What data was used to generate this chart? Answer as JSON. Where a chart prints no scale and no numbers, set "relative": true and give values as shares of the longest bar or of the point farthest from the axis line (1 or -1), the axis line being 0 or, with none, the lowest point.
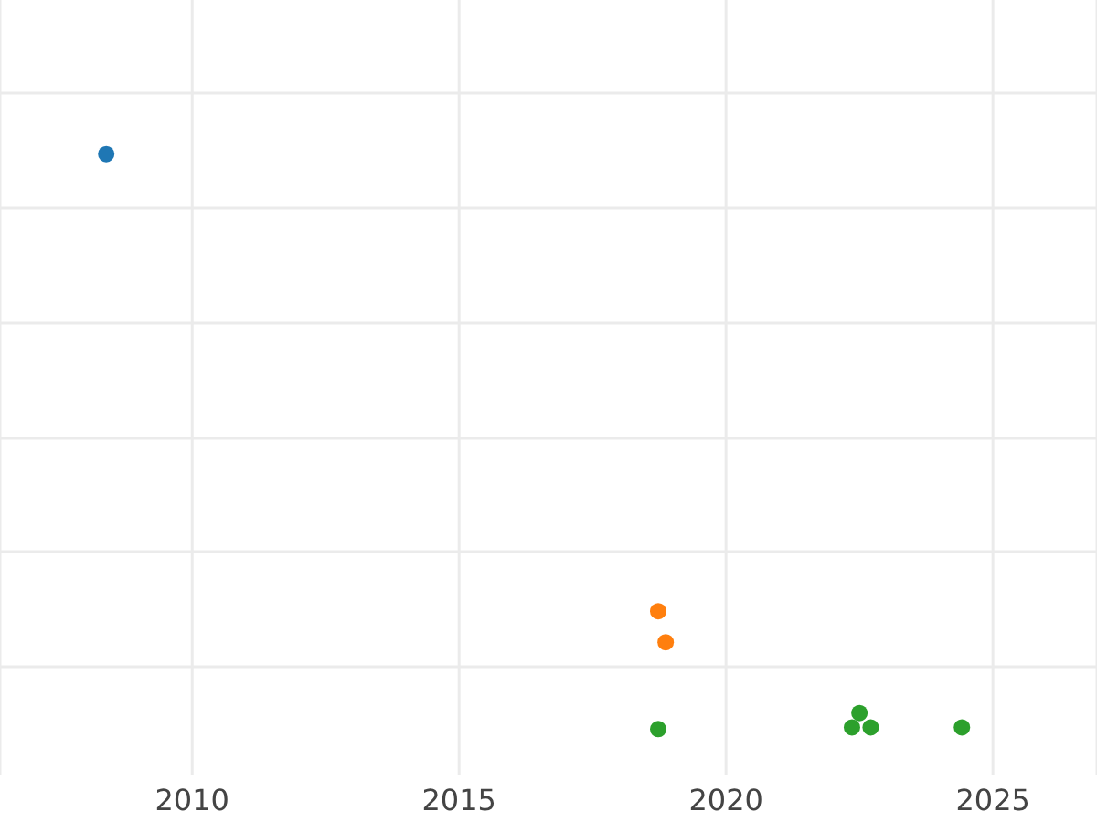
{
  "chart_data": {
    "type": "scatter",
    "relative": true,
    "grid": true,
    "marker": "circle",
    "xlim": [
      2006.4,
      2026.95
    ],
    "xticks": [
      2010,
      2015,
      2020,
      2025
    ],
    "series": [
      {
        "color": "#1f77b4",
        "x": [
          2008.39
        ],
        "values": [
          1
        ]
      },
      {
        "color": "#ff7f0e",
        "x": [
          2018.73,
          2018.87
        ],
        "values": [
          0.205,
          0.151
        ]
      },
      {
        "color": "#2ca02c",
        "x": [
          2018.73,
          2022.5,
          2022.36,
          2022.71,
          2024.42
        ],
        "values": [
          0,
          0.028,
          0.003,
          0.003,
          0.003
        ]
      }
    ]
  }
}
